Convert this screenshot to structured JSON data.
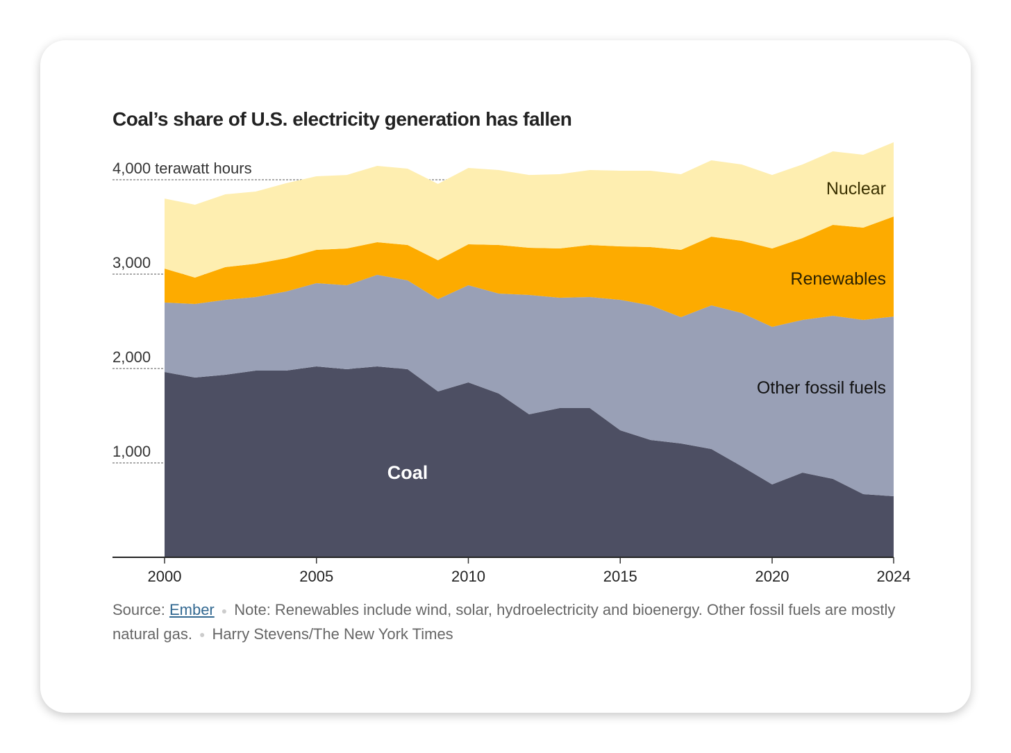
{
  "title": "Coal’s share of U.S. electricity generation has fallen",
  "chart_data": {
    "type": "area",
    "stacked": true,
    "title": "Coal’s share of U.S. electricity generation has fallen",
    "xlabel": "",
    "ylabel": "terawatt hours",
    "x": [
      2000,
      2001,
      2002,
      2003,
      2004,
      2005,
      2006,
      2007,
      2008,
      2009,
      2010,
      2011,
      2012,
      2013,
      2014,
      2015,
      2016,
      2017,
      2018,
      2019,
      2020,
      2021,
      2022,
      2023,
      2024
    ],
    "xlim": [
      2000,
      2024
    ],
    "ylim": [
      0,
      4400
    ],
    "x_ticks": [
      "2000",
      "2005",
      "2010",
      "2015",
      "2020",
      "2024"
    ],
    "x_tick_values": [
      2000,
      2005,
      2010,
      2015,
      2020,
      2024
    ],
    "y_ticks": [
      "1,000",
      "2,000",
      "3,000",
      "4,000 terawatt hours"
    ],
    "y_tick_values": [
      1000,
      2000,
      3000,
      4000
    ],
    "grid": "dashed, y-axis left only",
    "series": [
      {
        "name": "Coal",
        "color": "#4d4f63",
        "label_color": "#ffffff",
        "values": [
          1963,
          1904,
          1934,
          1978,
          1978,
          2022,
          1993,
          2022,
          1993,
          1757,
          1853,
          1735,
          1515,
          1581,
          1581,
          1346,
          1243,
          1206,
          1147,
          963,
          772,
          897,
          831,
          669,
          647
        ]
      },
      {
        "name": "Other fossil fuels",
        "color": "#99a0b6",
        "label_color": "#111111",
        "values": [
          736,
          780,
          794,
          779,
          838,
          882,
          889,
          971,
          941,
          978,
          1029,
          1059,
          1264,
          1169,
          1176,
          1382,
          1426,
          1338,
          1522,
          1625,
          1669,
          1618,
          1728,
          1846,
          1904
        ]
      },
      {
        "name": "Renewables",
        "color": "#fdab00",
        "label_color": "#2a2000",
        "values": [
          360,
          279,
          346,
          353,
          353,
          353,
          390,
          345,
          375,
          412,
          434,
          515,
          500,
          522,
          552,
          566,
          618,
          713,
          728,
          765,
          831,
          867,
          963,
          978,
          1059
        ]
      },
      {
        "name": "Nuclear",
        "color": "#feeeb0",
        "label_color": "#3a3000",
        "values": [
          742,
          772,
          772,
          765,
          794,
          780,
          779,
          809,
          809,
          809,
          809,
          794,
          772,
          787,
          794,
          802,
          809,
          802,
          809,
          809,
          779,
          780,
          779,
          772,
          787
        ]
      }
    ]
  },
  "footer": {
    "source_label": "Source:",
    "source_link": "Ember",
    "note": "Note: Renewables include wind, solar, hydroelectricity and bioenergy. Other fossil fuels are mostly natural gas.",
    "credit": "Harry Stevens/The New York Times"
  }
}
